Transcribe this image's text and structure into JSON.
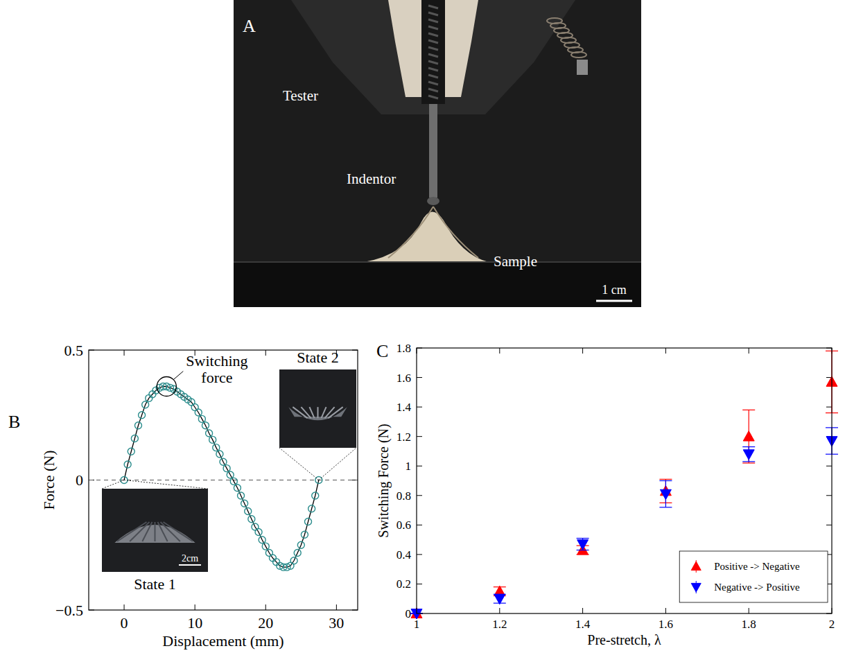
{
  "panel_a": {
    "label": "A",
    "texts": [
      "Tester",
      "Indentor",
      "Sample"
    ],
    "scale_bar": "1 cm"
  },
  "chart_data": [
    {
      "type": "line",
      "panel_label": "B",
      "xlabel": "Displacement (mm)",
      "ylabel": "Force (N)",
      "xlim": [
        -5,
        33
      ],
      "xticks": [
        0,
        10,
        20,
        30
      ],
      "ylim": [
        -0.5,
        0.5
      ],
      "yticks": [
        {
          "value": -0.5,
          "label": "−0.5"
        },
        0,
        0.5
      ],
      "grid": false,
      "series": [
        {
          "color": "#2a8c8c",
          "marker": "circle",
          "line_style": "solid",
          "x": [
            0,
            0.5,
            1,
            1.5,
            2,
            2.5,
            3,
            3.5,
            4,
            4.5,
            5,
            5.5,
            6,
            6.5,
            7,
            7.5,
            8,
            8.5,
            9,
            9.5,
            10,
            10.5,
            11,
            11.5,
            12,
            12.5,
            13,
            13.5,
            14,
            14.5,
            15,
            15.5,
            16,
            16.5,
            17,
            17.5,
            18,
            18.5,
            19,
            19.5,
            20,
            20.5,
            21,
            21.5,
            22,
            22.5,
            23,
            23.5,
            24,
            24.5,
            25,
            25.5,
            26,
            26.5,
            27,
            27.5
          ],
          "values": [
            0,
            0.06,
            0.11,
            0.16,
            0.21,
            0.25,
            0.29,
            0.315,
            0.33,
            0.345,
            0.355,
            0.36,
            0.36,
            0.355,
            0.35,
            0.34,
            0.33,
            0.32,
            0.31,
            0.3,
            0.28,
            0.26,
            0.235,
            0.21,
            0.18,
            0.155,
            0.125,
            0.1,
            0.07,
            0.045,
            0.02,
            -0.005,
            -0.03,
            -0.06,
            -0.09,
            -0.12,
            -0.15,
            -0.18,
            -0.2,
            -0.23,
            -0.255,
            -0.28,
            -0.3,
            -0.315,
            -0.33,
            -0.335,
            -0.335,
            -0.33,
            -0.31,
            -0.28,
            -0.25,
            -0.21,
            -0.16,
            -0.11,
            -0.06,
            0
          ]
        }
      ],
      "annotations": [
        {
          "text": "Switching force",
          "x": 6,
          "y": 0.36
        }
      ],
      "insets": [
        {
          "label": "State 1",
          "scale_bar": "2cm",
          "x": 0,
          "y": 0
        },
        {
          "label": "State 2",
          "x": 27.5,
          "y": 0
        }
      ]
    },
    {
      "type": "scatter",
      "panel_label": "C",
      "xlabel": "Pre-stretch, λ",
      "ylabel": "Switching Force (N)",
      "xlim": [
        1,
        2
      ],
      "xticks": [
        1,
        1.2,
        1.4,
        1.6,
        1.8,
        2
      ],
      "ylim": [
        0,
        1.8
      ],
      "yticks": [
        0,
        0.2,
        0.4,
        0.6,
        0.8,
        1,
        1.2,
        1.4,
        1.6,
        1.8
      ],
      "grid": false,
      "legend": "lower right",
      "series": [
        {
          "name": "Positive -> Negative",
          "color": "#ff0000",
          "marker": "triangle-up",
          "x": [
            1,
            1.2,
            1.4,
            1.6,
            1.8,
            2
          ],
          "values": [
            0,
            0.15,
            0.43,
            0.83,
            1.2,
            1.57
          ],
          "errors": [
            0,
            0.03,
            0.03,
            0.08,
            0.18,
            0.21
          ]
        },
        {
          "name": "Negative -> Positive",
          "color": "#0000ff",
          "marker": "triangle-down",
          "x": [
            1,
            1.2,
            1.4,
            1.6,
            1.8,
            2
          ],
          "values": [
            0,
            0.1,
            0.47,
            0.81,
            1.08,
            1.17
          ],
          "errors": [
            0,
            0.03,
            0.04,
            0.09,
            0.05,
            0.09
          ]
        }
      ]
    }
  ]
}
